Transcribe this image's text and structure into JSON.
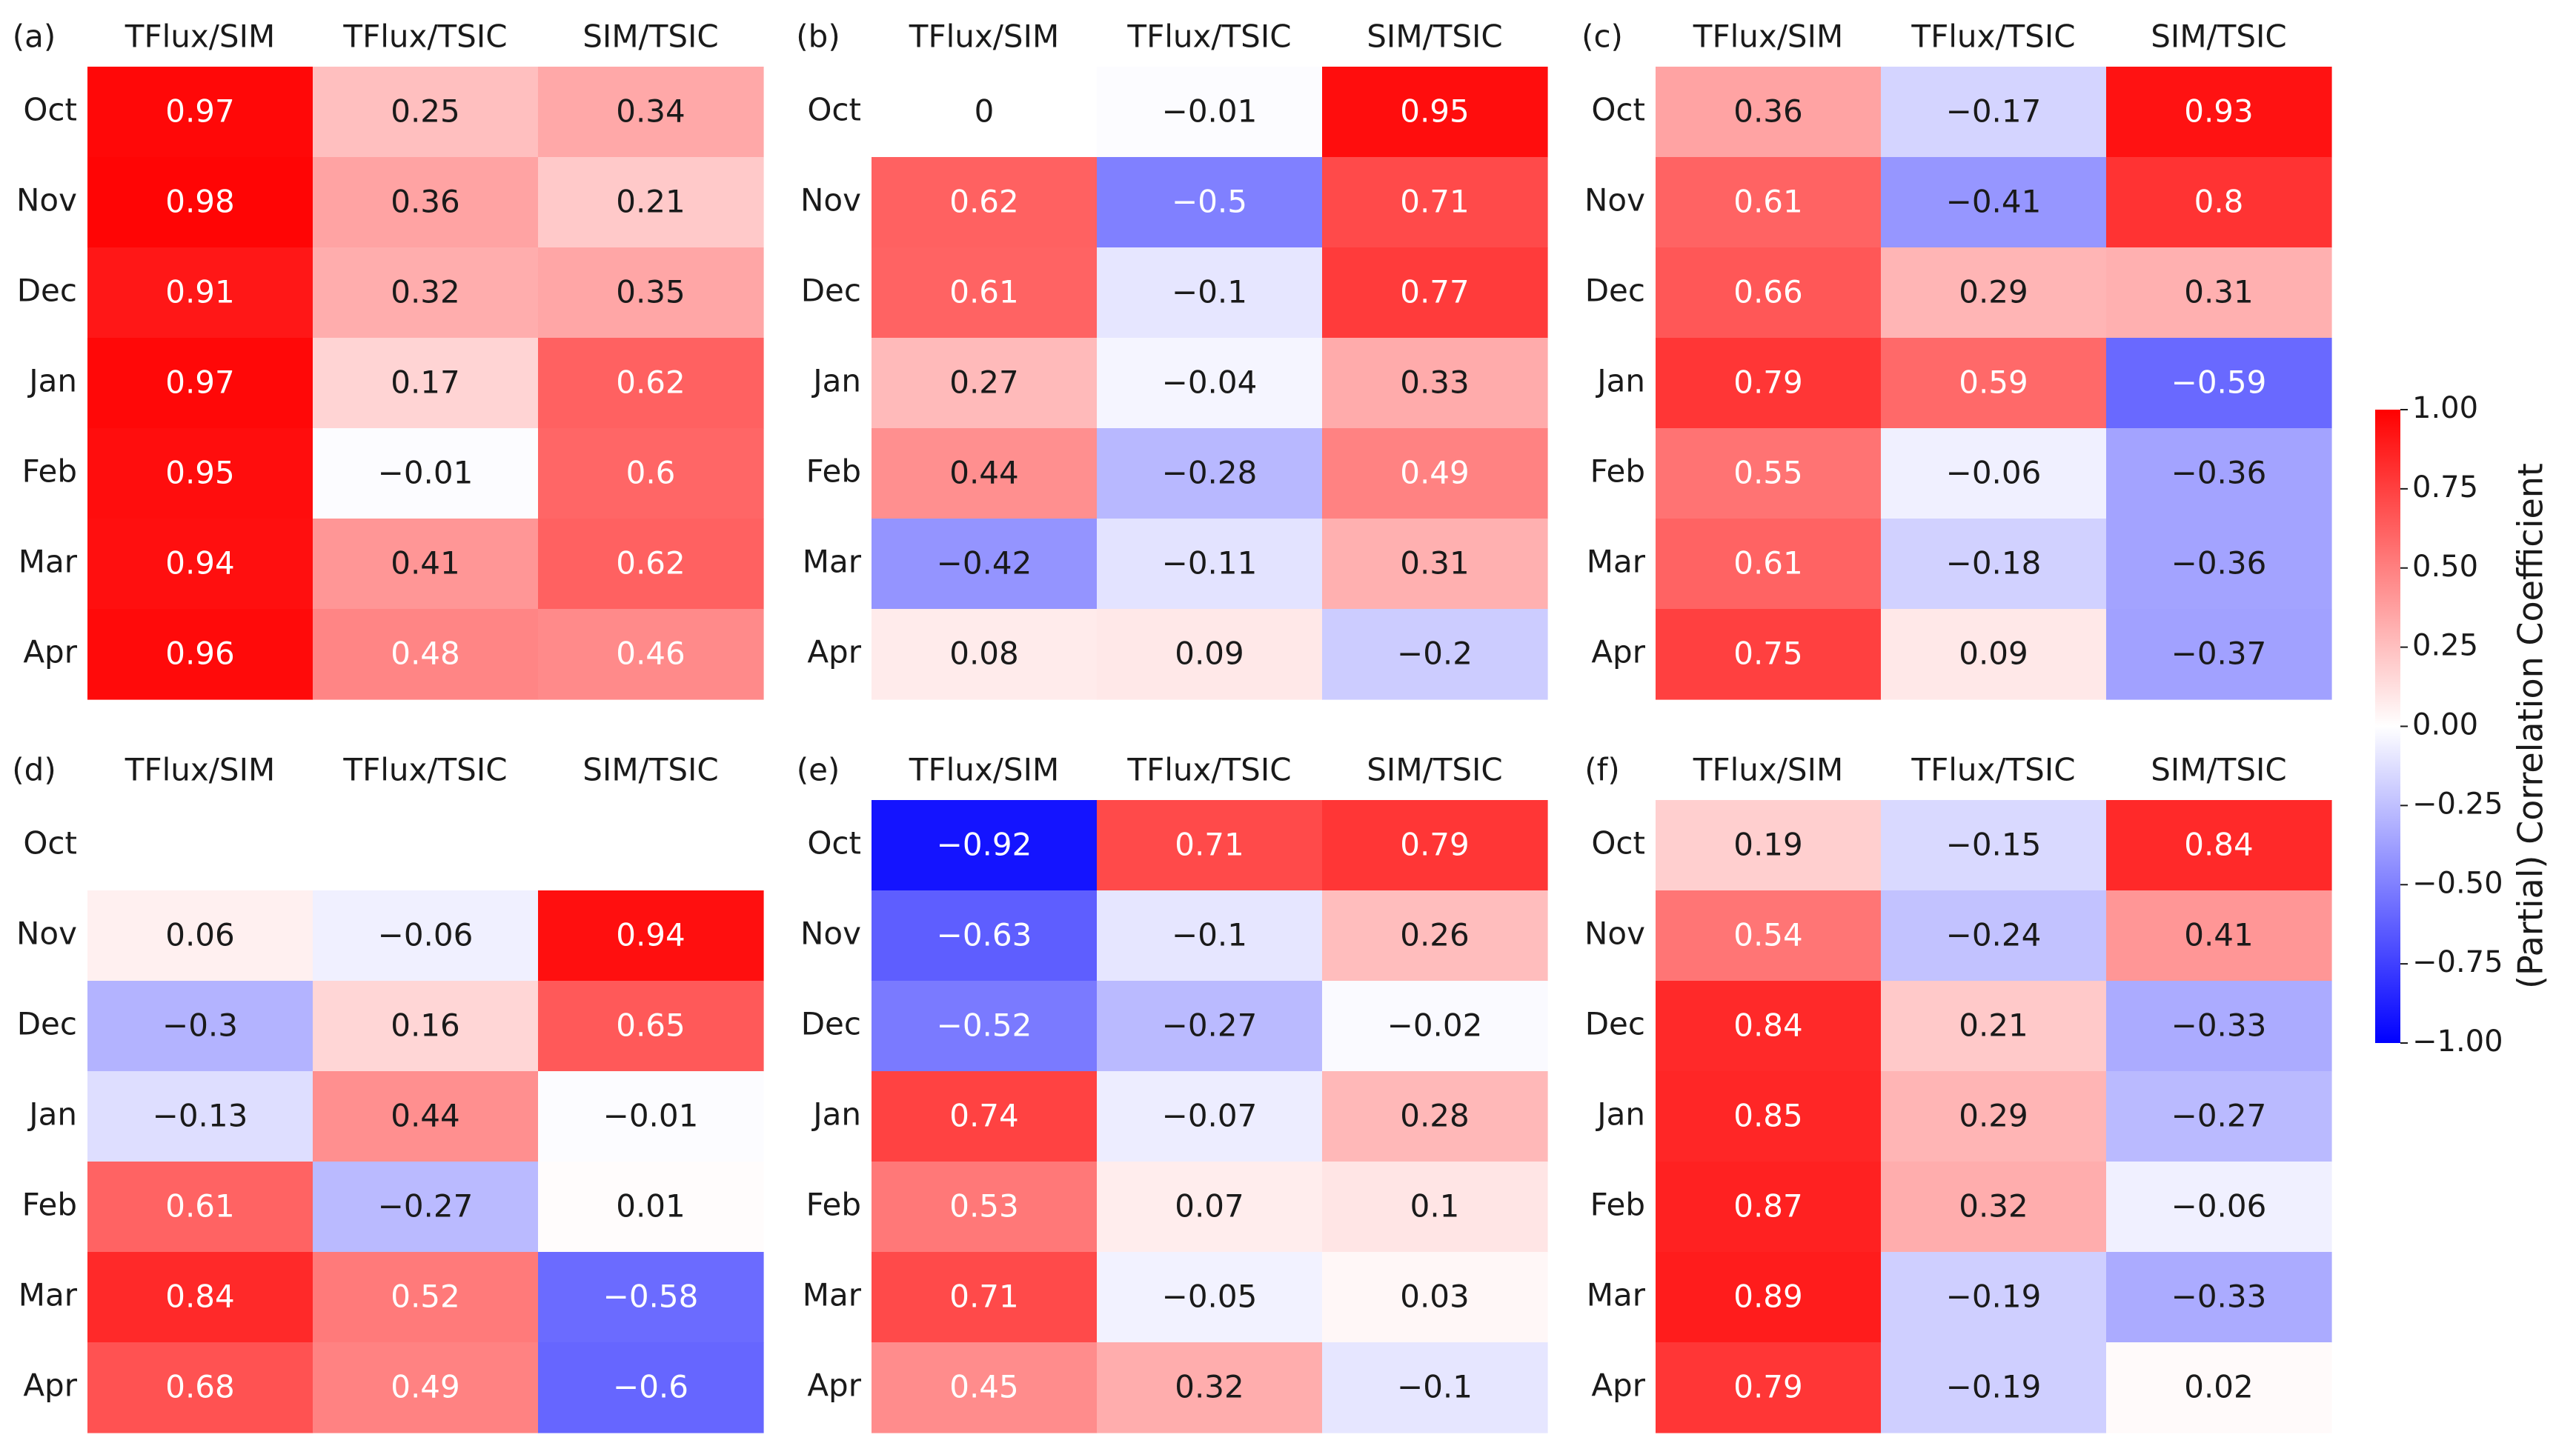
{
  "chart_data": {
    "type": "heatmap",
    "columns": [
      "TFlux/SIM",
      "TFlux/TSIC",
      "SIM/TSIC"
    ],
    "rows": [
      "Oct",
      "Nov",
      "Dec",
      "Jan",
      "Feb",
      "Mar",
      "Apr"
    ],
    "colormap": "bwr",
    "vmin": -1.0,
    "vmax": 1.0,
    "colors": {
      "low": "#0000ff",
      "mid": "#ffffff",
      "high": "#ff0000"
    },
    "colorbar": {
      "label": "(Partial) Correlation Coefficient",
      "ticks": [
        "1.00",
        "0.75",
        "0.50",
        "0.25",
        "0.00",
        "−0.25",
        "−0.50",
        "−0.75",
        "−1.00"
      ],
      "tick_values": [
        1.0,
        0.75,
        0.5,
        0.25,
        0.0,
        -0.25,
        -0.5,
        -0.75,
        -1.0
      ]
    },
    "panels": [
      {
        "label": "(a)",
        "values": [
          [
            0.97,
            0.25,
            0.34
          ],
          [
            0.98,
            0.36,
            0.21
          ],
          [
            0.91,
            0.32,
            0.35
          ],
          [
            0.97,
            0.17,
            0.62
          ],
          [
            0.95,
            -0.01,
            0.6
          ],
          [
            0.94,
            0.41,
            0.62
          ],
          [
            0.96,
            0.48,
            0.46
          ]
        ],
        "display": [
          [
            "0.97",
            "0.25",
            "0.34"
          ],
          [
            "0.98",
            "0.36",
            "0.21"
          ],
          [
            "0.91",
            "0.32",
            "0.35"
          ],
          [
            "0.97",
            "0.17",
            "0.62"
          ],
          [
            "0.95",
            "−0.01",
            "0.6"
          ],
          [
            "0.94",
            "0.41",
            "0.62"
          ],
          [
            "0.96",
            "0.48",
            "0.46"
          ]
        ]
      },
      {
        "label": "(b)",
        "values": [
          [
            0,
            -0.01,
            0.95
          ],
          [
            0.62,
            -0.5,
            0.71
          ],
          [
            0.61,
            -0.1,
            0.77
          ],
          [
            0.27,
            -0.04,
            0.33
          ],
          [
            0.44,
            -0.28,
            0.49
          ],
          [
            -0.42,
            -0.11,
            0.31
          ],
          [
            0.08,
            0.09,
            -0.2
          ]
        ],
        "display": [
          [
            "0",
            "−0.01",
            "0.95"
          ],
          [
            "0.62",
            "−0.5",
            "0.71"
          ],
          [
            "0.61",
            "−0.1",
            "0.77"
          ],
          [
            "0.27",
            "−0.04",
            "0.33"
          ],
          [
            "0.44",
            "−0.28",
            "0.49"
          ],
          [
            "−0.42",
            "−0.11",
            "0.31"
          ],
          [
            "0.08",
            "0.09",
            "−0.2"
          ]
        ]
      },
      {
        "label": "(c)",
        "values": [
          [
            0.36,
            -0.17,
            0.93
          ],
          [
            0.61,
            -0.41,
            0.8
          ],
          [
            0.66,
            0.29,
            0.31
          ],
          [
            0.79,
            0.59,
            -0.59
          ],
          [
            0.55,
            -0.06,
            -0.36
          ],
          [
            0.61,
            -0.18,
            -0.36
          ],
          [
            0.75,
            0.09,
            -0.37
          ]
        ],
        "display": [
          [
            "0.36",
            "−0.17",
            "0.93"
          ],
          [
            "0.61",
            "−0.41",
            "0.8"
          ],
          [
            "0.66",
            "0.29",
            "0.31"
          ],
          [
            "0.79",
            "0.59",
            "−0.59"
          ],
          [
            "0.55",
            "−0.06",
            "−0.36"
          ],
          [
            "0.61",
            "−0.18",
            "−0.36"
          ],
          [
            "0.75",
            "0.09",
            "−0.37"
          ]
        ]
      },
      {
        "label": "(d)",
        "values": [
          [
            null,
            null,
            null
          ],
          [
            0.06,
            -0.06,
            0.94
          ],
          [
            -0.3,
            0.16,
            0.65
          ],
          [
            -0.13,
            0.44,
            -0.01
          ],
          [
            0.61,
            -0.27,
            0.01
          ],
          [
            0.84,
            0.52,
            -0.58
          ],
          [
            0.68,
            0.49,
            -0.6
          ]
        ],
        "display": [
          [
            null,
            null,
            null
          ],
          [
            "0.06",
            "−0.06",
            "0.94"
          ],
          [
            "−0.3",
            "0.16",
            "0.65"
          ],
          [
            "−0.13",
            "0.44",
            "−0.01"
          ],
          [
            "0.61",
            "−0.27",
            "0.01"
          ],
          [
            "0.84",
            "0.52",
            "−0.58"
          ],
          [
            "0.68",
            "0.49",
            "−0.6"
          ]
        ]
      },
      {
        "label": "(e)",
        "values": [
          [
            -0.92,
            0.71,
            0.79
          ],
          [
            -0.63,
            -0.1,
            0.26
          ],
          [
            -0.52,
            -0.27,
            -0.02
          ],
          [
            0.74,
            -0.07,
            0.28
          ],
          [
            0.53,
            0.07,
            0.1
          ],
          [
            0.71,
            -0.05,
            0.03
          ],
          [
            0.45,
            0.32,
            -0.1
          ]
        ],
        "display": [
          [
            "−0.92",
            "0.71",
            "0.79"
          ],
          [
            "−0.63",
            "−0.1",
            "0.26"
          ],
          [
            "−0.52",
            "−0.27",
            "−0.02"
          ],
          [
            "0.74",
            "−0.07",
            "0.28"
          ],
          [
            "0.53",
            "0.07",
            "0.1"
          ],
          [
            "0.71",
            "−0.05",
            "0.03"
          ],
          [
            "0.45",
            "0.32",
            "−0.1"
          ]
        ]
      },
      {
        "label": "(f)",
        "values": [
          [
            0.19,
            -0.15,
            0.84
          ],
          [
            0.54,
            -0.24,
            0.41
          ],
          [
            0.84,
            0.21,
            -0.33
          ],
          [
            0.85,
            0.29,
            -0.27
          ],
          [
            0.87,
            0.32,
            -0.06
          ],
          [
            0.89,
            -0.19,
            -0.33
          ],
          [
            0.79,
            -0.19,
            0.02
          ]
        ],
        "display": [
          [
            "0.19",
            "−0.15",
            "0.84"
          ],
          [
            "0.54",
            "−0.24",
            "0.41"
          ],
          [
            "0.84",
            "0.21",
            "−0.33"
          ],
          [
            "0.85",
            "0.29",
            "−0.27"
          ],
          [
            "0.87",
            "0.32",
            "−0.06"
          ],
          [
            "0.89",
            "−0.19",
            "−0.33"
          ],
          [
            "0.79",
            "−0.19",
            "0.02"
          ]
        ]
      }
    ]
  }
}
